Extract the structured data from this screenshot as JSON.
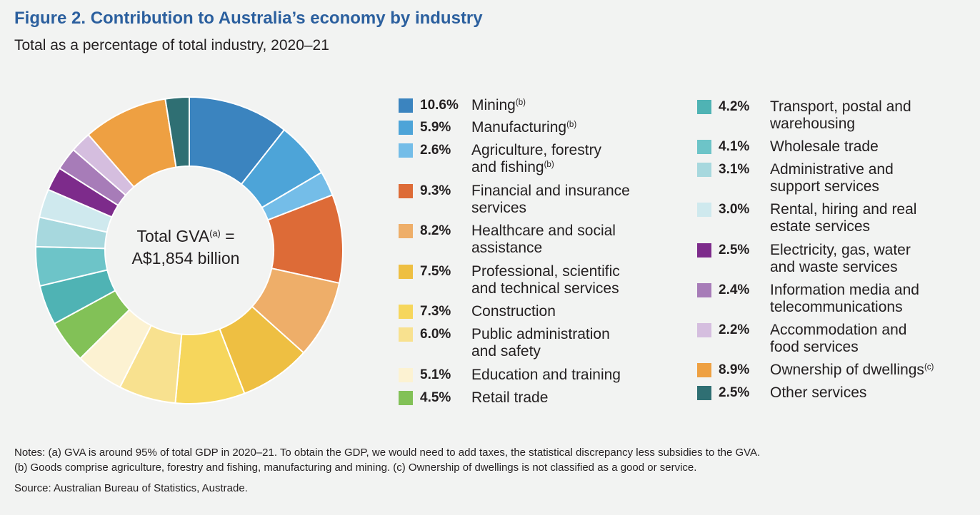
{
  "figure": {
    "title": "Figure 2. Contribution to Australia’s economy by industry",
    "subtitle": "Total as a percentage of total industry, 2020–21"
  },
  "center": {
    "line1": "Total GVA",
    "line1_sup": "(a)",
    "line1_suffix": " =",
    "line2": "A$1,854 billion"
  },
  "chart_data": {
    "type": "pie",
    "title": "Figure 2. Contribution to Australia’s economy by industry",
    "subtitle": "Total as a percentage of total industry, 2020–21",
    "unit": "%",
    "legend_placement": "right",
    "categories": [
      {
        "label": "Mining",
        "note": "(b)",
        "value": 10.6,
        "pct_text": "10.6%",
        "color": "#3b84bf"
      },
      {
        "label": "Manufacturing",
        "note": "(b)",
        "value": 5.9,
        "pct_text": "5.9%",
        "color": "#4da4d8"
      },
      {
        "label": "Agriculture, forestry and fishing",
        "note": "(b)",
        "value": 2.6,
        "pct_text": "2.6%",
        "color": "#74bde8"
      },
      {
        "label": "Financial and insurance services",
        "note": "",
        "value": 9.3,
        "pct_text": "9.3%",
        "color": "#dd6b37"
      },
      {
        "label": "Healthcare and social assistance",
        "note": "",
        "value": 8.2,
        "pct_text": "8.2%",
        "color": "#eeae69"
      },
      {
        "label": "Professional, scientific and technical services",
        "note": "",
        "value": 7.5,
        "pct_text": "7.5%",
        "color": "#eebf42"
      },
      {
        "label": "Construction",
        "note": "",
        "value": 7.3,
        "pct_text": "7.3%",
        "color": "#f6d65c"
      },
      {
        "label": "Public administration and safety",
        "note": "",
        "value": 6.0,
        "pct_text": "6.0%",
        "color": "#f8e18f"
      },
      {
        "label": "Education and training",
        "note": "",
        "value": 5.1,
        "pct_text": "5.1%",
        "color": "#fcf2d2"
      },
      {
        "label": "Retail trade",
        "note": "",
        "value": 4.5,
        "pct_text": "4.5%",
        "color": "#82c157"
      },
      {
        "label": "Transport, postal and warehousing",
        "note": "",
        "value": 4.2,
        "pct_text": "4.2%",
        "color": "#4fb3b4"
      },
      {
        "label": "Wholesale trade",
        "note": "",
        "value": 4.1,
        "pct_text": "4.1%",
        "color": "#6dc4c8"
      },
      {
        "label": "Administrative and support services",
        "note": "",
        "value": 3.1,
        "pct_text": "3.1%",
        "color": "#a7d8de"
      },
      {
        "label": "Rental, hiring and real estate services",
        "note": "",
        "value": 3.0,
        "pct_text": "3.0%",
        "color": "#cfe9ee"
      },
      {
        "label": "Electricity, gas, water and waste services",
        "note": "",
        "value": 2.5,
        "pct_text": "2.5%",
        "color": "#7d2b8b"
      },
      {
        "label": "Information media and telecommunications",
        "note": "",
        "value": 2.4,
        "pct_text": "2.4%",
        "color": "#a77cb8"
      },
      {
        "label": "Accommodation and food services",
        "note": "",
        "value": 2.2,
        "pct_text": "2.2%",
        "color": "#d5bedf"
      },
      {
        "label": "Ownership of dwellings",
        "note": "(c)",
        "value": 8.9,
        "pct_text": "8.9%",
        "color": "#eea042"
      },
      {
        "label": "Other services",
        "note": "",
        "value": 2.5,
        "pct_text": "2.5%",
        "color": "#2f6f73"
      }
    ]
  },
  "legend": {
    "col1": [
      {
        "idx": 0,
        "lines": [
          "Mining"
        ],
        "note": "(b)"
      },
      {
        "idx": 1,
        "lines": [
          "Manufacturing"
        ],
        "note": "(b)"
      },
      {
        "idx": 2,
        "lines": [
          "Agriculture, forestry",
          "and fishing"
        ],
        "note": "(b)"
      },
      {
        "idx": 3,
        "lines": [
          "Financial and insurance",
          "services"
        ],
        "note": ""
      },
      {
        "idx": 4,
        "lines": [
          "Healthcare and social",
          "assistance"
        ],
        "note": ""
      },
      {
        "idx": 5,
        "lines": [
          "Professional, scientific",
          "and technical services"
        ],
        "note": ""
      },
      {
        "idx": 6,
        "lines": [
          "Construction"
        ],
        "note": ""
      },
      {
        "idx": 7,
        "lines": [
          "Public administration",
          "and safety"
        ],
        "note": ""
      },
      {
        "idx": 8,
        "lines": [
          "Education and training"
        ],
        "note": ""
      },
      {
        "idx": 9,
        "lines": [
          "Retail trade"
        ],
        "note": ""
      }
    ],
    "col2": [
      {
        "idx": 10,
        "lines": [
          "Transport, postal and",
          "warehousing"
        ],
        "note": ""
      },
      {
        "idx": 11,
        "lines": [
          "Wholesale trade"
        ],
        "note": ""
      },
      {
        "idx": 12,
        "lines": [
          "Administrative and",
          "support services"
        ],
        "note": ""
      },
      {
        "idx": 13,
        "lines": [
          "Rental, hiring and real",
          "estate services"
        ],
        "note": ""
      },
      {
        "idx": 14,
        "lines": [
          "Electricity, gas, water",
          "and waste services"
        ],
        "note": ""
      },
      {
        "idx": 15,
        "lines": [
          "Information media and",
          "telecommunications"
        ],
        "note": ""
      },
      {
        "idx": 16,
        "lines": [
          "Accommodation and",
          "food services"
        ],
        "note": ""
      },
      {
        "idx": 17,
        "lines": [
          "Ownership of dwellings"
        ],
        "note": "(c)"
      },
      {
        "idx": 18,
        "lines": [
          "Other services"
        ],
        "note": ""
      }
    ]
  },
  "notes": {
    "line1": "Notes: (a) GVA is around 95% of total GDP in 2020–21. To obtain the GDP, we would need to add taxes, the statistical discrepancy less subsidies to the GVA.",
    "line2": "(b) Goods comprise agriculture, forestry and fishing, manufacturing and mining. (c) Ownership of dwellings is not classified as a good or service.",
    "source": "Source: Australian Bureau of Statistics, Austrade."
  }
}
